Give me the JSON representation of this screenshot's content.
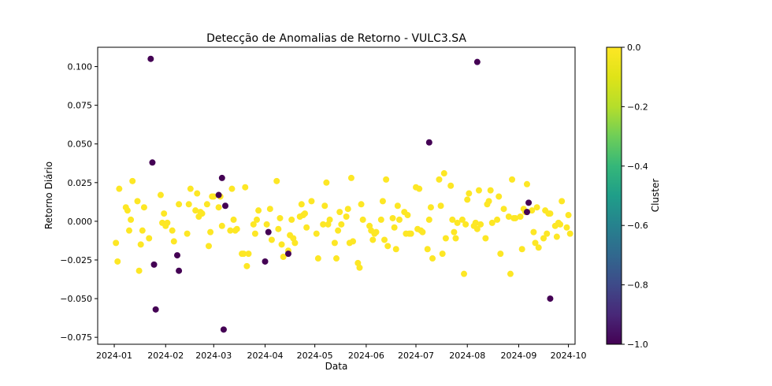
{
  "chart_data": {
    "type": "scatter",
    "title": "Detecção de Anomalias de Retorno - VULC3.SA",
    "xlabel": "Data",
    "ylabel": "Retorno Diário",
    "x_ticks": [
      "2024-01",
      "2024-02",
      "2024-03",
      "2024-04",
      "2024-05",
      "2024-06",
      "2024-07",
      "2024-08",
      "2024-09",
      "2024-10"
    ],
    "y_ticks": [
      "−0.075",
      "−0.050",
      "−0.025",
      "0.000",
      "0.025",
      "0.050",
      "0.075",
      "0.100"
    ],
    "xlim": [
      "2023-12-22",
      "2024-10-05"
    ],
    "ylim": [
      -0.0795,
      0.1125
    ],
    "grid": false,
    "colorbar": {
      "label": "Cluster",
      "range": [
        -1.0,
        0.0
      ],
      "ticks": [
        "0.0",
        "−0.2",
        "−0.4",
        "−0.6",
        "−0.8",
        "−1.0"
      ],
      "colormap": "viridis"
    },
    "colors": {
      "normal": "#fde725",
      "anomaly": "#440154"
    },
    "series": [
      {
        "cluster": 0,
        "points": [
          [
            "2024-01-02",
            -0.014
          ],
          [
            "2024-01-03",
            -0.026
          ],
          [
            "2024-01-04",
            0.021
          ],
          [
            "2024-01-08",
            0.009
          ],
          [
            "2024-01-09",
            0.007
          ],
          [
            "2024-01-10",
            -0.006
          ],
          [
            "2024-01-11",
            0.001
          ],
          [
            "2024-01-12",
            0.026
          ],
          [
            "2024-01-15",
            0.013
          ],
          [
            "2024-01-16",
            -0.032
          ],
          [
            "2024-01-17",
            -0.015
          ],
          [
            "2024-01-18",
            -0.006
          ],
          [
            "2024-01-19",
            0.009
          ],
          [
            "2024-01-22",
            -0.011
          ],
          [
            "2024-01-29",
            0.017
          ],
          [
            "2024-01-30",
            -0.001
          ],
          [
            "2024-01-31",
            0.005
          ],
          [
            "2024-02-01",
            -0.003
          ],
          [
            "2024-02-02",
            -0.001
          ],
          [
            "2024-02-05",
            -0.006
          ],
          [
            "2024-02-06",
            -0.013
          ],
          [
            "2024-02-09",
            0.011
          ],
          [
            "2024-02-14",
            -0.008
          ],
          [
            "2024-02-15",
            0.011
          ],
          [
            "2024-02-16",
            0.021
          ],
          [
            "2024-02-19",
            0.007
          ],
          [
            "2024-02-20",
            0.018
          ],
          [
            "2024-02-21",
            0.003
          ],
          [
            "2024-02-22",
            0.006
          ],
          [
            "2024-02-23",
            0.005
          ],
          [
            "2024-02-26",
            0.011
          ],
          [
            "2024-02-27",
            -0.016
          ],
          [
            "2024-02-28",
            -0.007
          ],
          [
            "2024-02-29",
            0.016
          ],
          [
            "2024-03-01",
            0.016
          ],
          [
            "2024-03-04",
            0.009
          ],
          [
            "2024-03-05",
            0.016
          ],
          [
            "2024-03-06",
            -0.003
          ],
          [
            "2024-03-11",
            -0.006
          ],
          [
            "2024-03-12",
            0.021
          ],
          [
            "2024-03-13",
            0.001
          ],
          [
            "2024-03-14",
            -0.006
          ],
          [
            "2024-03-15",
            -0.005
          ],
          [
            "2024-03-18",
            -0.021
          ],
          [
            "2024-03-19",
            -0.021
          ],
          [
            "2024-03-20",
            0.022
          ],
          [
            "2024-03-21",
            -0.029
          ],
          [
            "2024-03-22",
            -0.021
          ],
          [
            "2024-03-25",
            -0.002
          ],
          [
            "2024-03-26",
            -0.008
          ],
          [
            "2024-03-27",
            0.001
          ],
          [
            "2024-03-28",
            0.007
          ],
          [
            "2024-04-02",
            -0.002
          ],
          [
            "2024-04-04",
            0.008
          ],
          [
            "2024-04-05",
            -0.012
          ],
          [
            "2024-04-08",
            0.026
          ],
          [
            "2024-04-09",
            -0.005
          ],
          [
            "2024-04-10",
            0.002
          ],
          [
            "2024-04-11",
            -0.015
          ],
          [
            "2024-04-12",
            -0.023
          ],
          [
            "2024-04-15",
            -0.019
          ],
          [
            "2024-04-16",
            -0.009
          ],
          [
            "2024-04-17",
            0.001
          ],
          [
            "2024-04-18",
            -0.011
          ],
          [
            "2024-04-19",
            -0.014
          ],
          [
            "2024-04-22",
            0.003
          ],
          [
            "2024-04-23",
            0.011
          ],
          [
            "2024-04-24",
            0.004
          ],
          [
            "2024-04-25",
            0.005
          ],
          [
            "2024-04-26",
            -0.004
          ],
          [
            "2024-04-29",
            0.013
          ],
          [
            "2024-05-02",
            -0.008
          ],
          [
            "2024-05-03",
            -0.024
          ],
          [
            "2024-05-06",
            -0.002
          ],
          [
            "2024-05-07",
            0.01
          ],
          [
            "2024-05-08",
            0.025
          ],
          [
            "2024-05-09",
            -0.002
          ],
          [
            "2024-05-10",
            0.001
          ],
          [
            "2024-05-13",
            -0.014
          ],
          [
            "2024-05-14",
            -0.024
          ],
          [
            "2024-05-15",
            -0.006
          ],
          [
            "2024-05-16",
            0.006
          ],
          [
            "2024-05-17",
            -0.002
          ],
          [
            "2024-05-20",
            0.003
          ],
          [
            "2024-05-21",
            0.008
          ],
          [
            "2024-05-22",
            -0.014
          ],
          [
            "2024-05-23",
            0.028
          ],
          [
            "2024-05-24",
            -0.013
          ],
          [
            "2024-05-27",
            -0.027
          ],
          [
            "2024-05-28",
            -0.03
          ],
          [
            "2024-05-29",
            0.011
          ],
          [
            "2024-05-30",
            0.001
          ],
          [
            "2024-06-03",
            -0.003
          ],
          [
            "2024-06-04",
            -0.006
          ],
          [
            "2024-06-05",
            -0.012
          ],
          [
            "2024-06-06",
            -0.008
          ],
          [
            "2024-06-07",
            -0.007
          ],
          [
            "2024-06-10",
            0.001
          ],
          [
            "2024-06-11",
            0.013
          ],
          [
            "2024-06-12",
            -0.012
          ],
          [
            "2024-06-13",
            0.027
          ],
          [
            "2024-06-14",
            -0.016
          ],
          [
            "2024-06-17",
            0.002
          ],
          [
            "2024-06-18",
            -0.004
          ],
          [
            "2024-06-19",
            -0.018
          ],
          [
            "2024-06-20",
            0.01
          ],
          [
            "2024-06-21",
            0.001
          ],
          [
            "2024-06-24",
            0.006
          ],
          [
            "2024-06-25",
            -0.008
          ],
          [
            "2024-06-26",
            0.004
          ],
          [
            "2024-06-27",
            -0.008
          ],
          [
            "2024-06-28",
            -0.008
          ],
          [
            "2024-07-01",
            0.022
          ],
          [
            "2024-07-02",
            -0.005
          ],
          [
            "2024-07-03",
            0.021
          ],
          [
            "2024-07-04",
            -0.006
          ],
          [
            "2024-07-05",
            -0.007
          ],
          [
            "2024-07-08",
            -0.018
          ],
          [
            "2024-07-09",
            0.001
          ],
          [
            "2024-07-10",
            0.009
          ],
          [
            "2024-07-11",
            -0.024
          ],
          [
            "2024-07-15",
            0.027
          ],
          [
            "2024-07-16",
            0.01
          ],
          [
            "2024-07-17",
            -0.021
          ],
          [
            "2024-07-18",
            0.031
          ],
          [
            "2024-07-19",
            -0.011
          ],
          [
            "2024-07-22",
            0.023
          ],
          [
            "2024-07-23",
            0.001
          ],
          [
            "2024-07-24",
            -0.007
          ],
          [
            "2024-07-25",
            -0.011
          ],
          [
            "2024-07-26",
            -0.001
          ],
          [
            "2024-07-29",
            0.001
          ],
          [
            "2024-07-30",
            -0.034
          ],
          [
            "2024-07-31",
            -0.002
          ],
          [
            "2024-08-01",
            0.014
          ],
          [
            "2024-08-02",
            0.018
          ],
          [
            "2024-08-05",
            -0.003
          ],
          [
            "2024-08-06",
            -0.001
          ],
          [
            "2024-08-07",
            -0.005
          ],
          [
            "2024-08-08",
            0.02
          ],
          [
            "2024-08-09",
            -0.002
          ],
          [
            "2024-08-12",
            -0.011
          ],
          [
            "2024-08-13",
            0.011
          ],
          [
            "2024-08-14",
            0.013
          ],
          [
            "2024-08-15",
            0.02
          ],
          [
            "2024-08-16",
            -0.001
          ],
          [
            "2024-08-19",
            0.001
          ],
          [
            "2024-08-20",
            0.016
          ],
          [
            "2024-08-21",
            -0.021
          ],
          [
            "2024-08-23",
            0.008
          ],
          [
            "2024-08-26",
            0.003
          ],
          [
            "2024-08-27",
            -0.034
          ],
          [
            "2024-08-28",
            0.027
          ],
          [
            "2024-08-29",
            0.002
          ],
          [
            "2024-08-30",
            0.002
          ],
          [
            "2024-09-02",
            0.003
          ],
          [
            "2024-09-03",
            -0.018
          ],
          [
            "2024-09-04",
            0.008
          ],
          [
            "2024-09-05",
            0.006
          ],
          [
            "2024-09-06",
            0.024
          ],
          [
            "2024-09-09",
            0.007
          ],
          [
            "2024-09-10",
            -0.007
          ],
          [
            "2024-09-11",
            -0.014
          ],
          [
            "2024-09-12",
            0.009
          ],
          [
            "2024-09-13",
            -0.017
          ],
          [
            "2024-09-16",
            -0.011
          ],
          [
            "2024-09-17",
            0.007
          ],
          [
            "2024-09-18",
            -0.008
          ],
          [
            "2024-09-19",
            0.005
          ],
          [
            "2024-09-20",
            0.005
          ],
          [
            "2024-09-23",
            -0.003
          ],
          [
            "2024-09-24",
            -0.01
          ],
          [
            "2024-09-25",
            -0.001
          ],
          [
            "2024-09-26",
            -0.002
          ],
          [
            "2024-09-27",
            0.013
          ],
          [
            "2024-09-30",
            -0.004
          ],
          [
            "2024-10-01",
            0.004
          ],
          [
            "2024-10-02",
            -0.008
          ]
        ]
      },
      {
        "cluster": -1,
        "points": [
          [
            "2024-01-23",
            0.105
          ],
          [
            "2024-01-24",
            0.038
          ],
          [
            "2024-01-25",
            -0.028
          ],
          [
            "2024-01-26",
            -0.057
          ],
          [
            "2024-02-08",
            -0.022
          ],
          [
            "2024-02-09",
            -0.032
          ],
          [
            "2024-03-04",
            0.017
          ],
          [
            "2024-03-06",
            0.028
          ],
          [
            "2024-03-07",
            -0.07
          ],
          [
            "2024-03-08",
            0.01
          ],
          [
            "2024-04-01",
            -0.026
          ],
          [
            "2024-04-03",
            -0.007
          ],
          [
            "2024-04-15",
            -0.021
          ],
          [
            "2024-07-09",
            0.051
          ],
          [
            "2024-08-07",
            0.103
          ],
          [
            "2024-09-06",
            0.006
          ],
          [
            "2024-09-07",
            0.012
          ],
          [
            "2024-09-20",
            -0.05
          ]
        ]
      }
    ]
  }
}
